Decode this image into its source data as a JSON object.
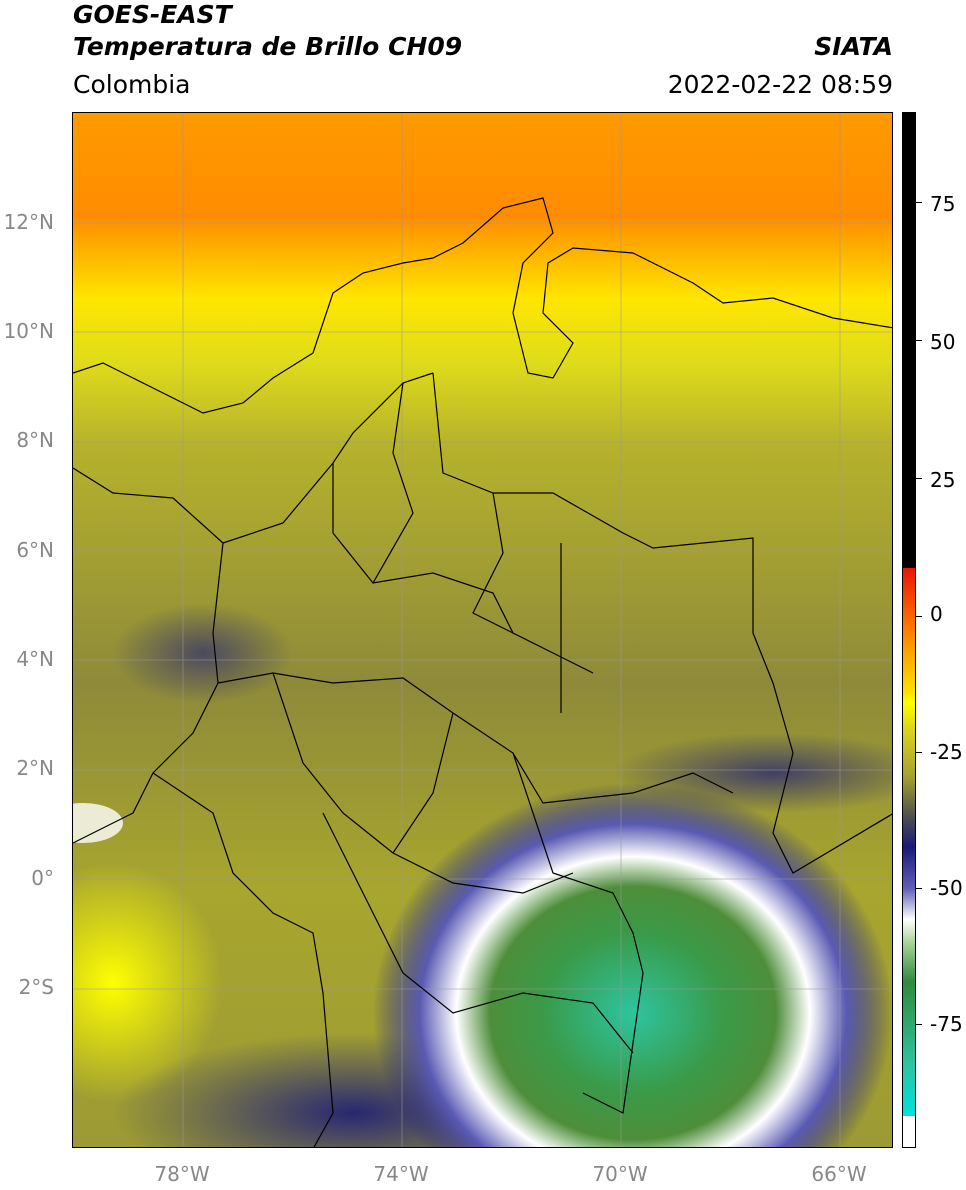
{
  "header": {
    "title_line1": "GOES-EAST",
    "title_line2": "Temperatura de Brillo CH09",
    "region": "Colombia",
    "agency": "SIATA",
    "datetime": "2022-02-22 08:59"
  },
  "map": {
    "lat_labels": [
      "12°N",
      "10°N",
      "8°N",
      "6°N",
      "4°N",
      "2°N",
      "0°",
      "2°S"
    ],
    "lon_labels": [
      "78°W",
      "74°W",
      "70°W",
      "66°W"
    ]
  },
  "colorbar": {
    "tick_labels": [
      "75",
      "50",
      "25",
      "0",
      "-25",
      "-50",
      "-75"
    ],
    "colors": {
      "top_black": "#000000",
      "red": "#e8140a",
      "orange": "#ff8c00",
      "yellow": "#ffff00",
      "olive": "#b8b830",
      "gray": "#505050",
      "navy": "#1a1a7a",
      "white": "#ffffff",
      "green": "#2e8b3c",
      "teal": "#2ec4a0",
      "cyan": "#00e0e0"
    }
  }
}
